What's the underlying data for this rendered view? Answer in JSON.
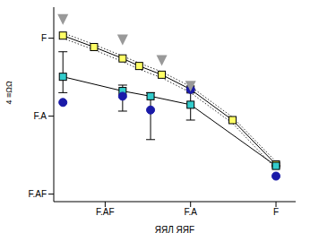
{
  "chart_data": {
    "type": "scatter",
    "log": true,
    "grid": false,
    "x_label": "ЯЯЛ ЯЯF",
    "y_label": "4 ≡ΩΩ",
    "xlim": [
      0.0025,
      1.7
    ],
    "ylim": [
      0.008,
      2.5
    ],
    "xticks": [
      {
        "value": 0.01,
        "label": "F.AF"
      },
      {
        "value": 0.1,
        "label": "F.A"
      },
      {
        "value": 1,
        "label": "F"
      }
    ],
    "yticks": [
      {
        "value": 0.01,
        "label": "F.AF"
      },
      {
        "value": 0.1,
        "label": "F.A"
      },
      {
        "value": 1,
        "label": "F"
      }
    ],
    "series": [
      {
        "color": "#333333",
        "line_style": "dotted",
        "marker": "none",
        "x": [
          0.0032,
          0.0074,
          0.016,
          0.025,
          0.046,
          0.1,
          0.31,
          1.0
        ],
        "values": [
          1.17,
          0.83,
          0.59,
          0.48,
          0.37,
          0.24,
          0.097,
          0.026
        ]
      },
      {
        "color": "#333333",
        "line_style": "dotted",
        "marker": "none",
        "x": [
          0.0032,
          0.0074,
          0.016,
          0.025,
          0.046,
          0.1,
          0.31,
          1.0
        ],
        "values": [
          1.0,
          0.71,
          0.5,
          0.4,
          0.31,
          0.2,
          0.081,
          0.021
        ]
      },
      {
        "color": "#ffff66",
        "line_style": "solid",
        "marker": "square",
        "x": [
          0.0032,
          0.0074,
          0.016,
          0.025,
          0.046,
          0.1,
          0.31,
          1.0
        ],
        "values": [
          1.08,
          0.77,
          0.55,
          0.44,
          0.34,
          0.22,
          0.089,
          0.024
        ]
      },
      {
        "color": "#33cccc",
        "line_style": "solid",
        "marker": "square",
        "x": [
          0.0032,
          0.016,
          0.034,
          0.1,
          1.0
        ],
        "values": [
          0.32,
          0.21,
          0.18,
          0.14,
          0.023
        ],
        "error_low": [
          0.2,
          0.116,
          0.05,
          0.089,
          null
        ],
        "error_high": [
          0.67,
          0.25,
          0.2,
          0.22,
          null
        ]
      },
      {
        "color": "#1a1aa8",
        "line_style": "none",
        "marker": "circle",
        "x": [
          0.0032,
          0.016,
          0.034,
          0.1,
          1.0
        ],
        "values": [
          0.15,
          0.18,
          0.12,
          0.22,
          0.017
        ]
      },
      {
        "color": "#999999",
        "line_style": "none",
        "marker": "triangle_down",
        "x": [
          0.0032,
          0.016,
          0.046,
          0.1
        ],
        "values": [
          1.65,
          0.9,
          0.49,
          0.23
        ]
      }
    ]
  }
}
